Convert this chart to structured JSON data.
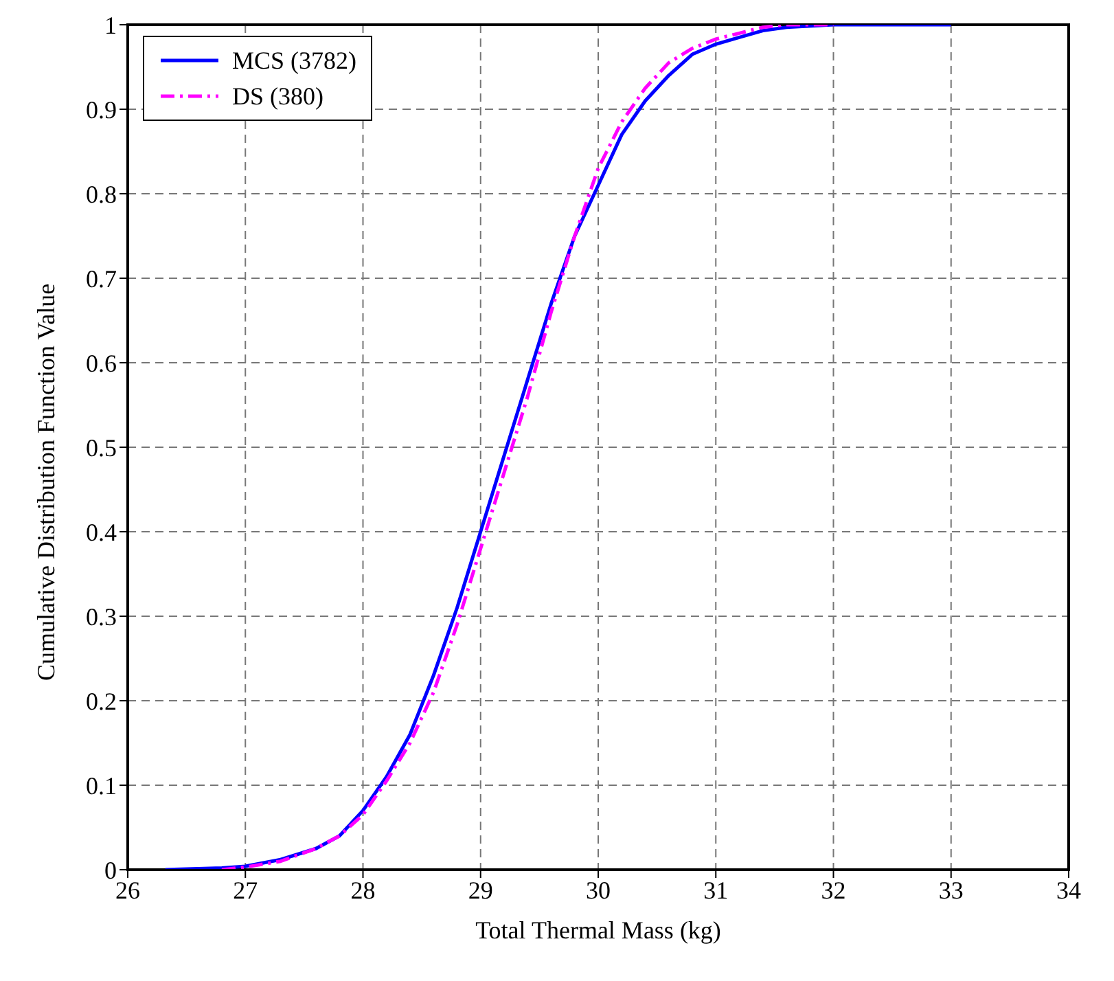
{
  "chart_data": {
    "type": "line",
    "xlabel": "Total Thermal Mass (kg)",
    "ylabel": "Cumulative Distribution Function Value",
    "xlim": [
      26,
      34
    ],
    "xticks": [
      26,
      27,
      28,
      29,
      30,
      31,
      32,
      33,
      34
    ],
    "ylim": [
      0,
      1
    ],
    "yticks": [
      0,
      0.1,
      0.2,
      0.3,
      0.4,
      0.5,
      0.6,
      0.7,
      0.8,
      0.9,
      1
    ],
    "grid": true,
    "legend": "top left",
    "series": [
      {
        "name": "MCS (3782)",
        "color": "#0000ff",
        "line_style": "solid",
        "x": [
          26.32,
          26.8,
          27.0,
          27.3,
          27.6,
          27.8,
          28.0,
          28.2,
          28.4,
          28.6,
          28.8,
          29.0,
          29.2,
          29.4,
          29.6,
          29.8,
          30.0,
          30.2,
          30.4,
          30.6,
          30.8,
          31.0,
          31.2,
          31.4,
          31.6,
          32.0,
          33.0
        ],
        "values": [
          0,
          0.002,
          0.004,
          0.012,
          0.025,
          0.04,
          0.07,
          0.11,
          0.16,
          0.23,
          0.31,
          0.4,
          0.49,
          0.58,
          0.67,
          0.75,
          0.81,
          0.87,
          0.91,
          0.94,
          0.965,
          0.977,
          0.985,
          0.993,
          0.997,
          1,
          1
        ]
      },
      {
        "name": "DS (380)",
        "color": "#ff00ff",
        "line_style": "dashdot",
        "x": [
          26.8,
          27.0,
          27.3,
          27.6,
          27.8,
          28.0,
          28.2,
          28.4,
          28.6,
          28.8,
          29.0,
          29.2,
          29.4,
          29.6,
          29.8,
          30.0,
          30.2,
          30.4,
          30.6,
          30.8,
          31.0,
          31.2,
          31.4,
          31.6,
          32.0
        ],
        "values": [
          0,
          0.003,
          0.01,
          0.025,
          0.04,
          0.065,
          0.105,
          0.15,
          0.21,
          0.29,
          0.38,
          0.47,
          0.56,
          0.66,
          0.75,
          0.83,
          0.885,
          0.925,
          0.955,
          0.972,
          0.983,
          0.99,
          0.997,
          1,
          1
        ]
      }
    ]
  }
}
